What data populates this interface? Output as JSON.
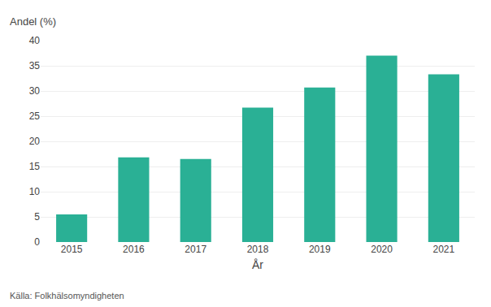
{
  "chart_data": {
    "type": "bar",
    "categories": [
      "2015",
      "2016",
      "2017",
      "2018",
      "2019",
      "2020",
      "2021"
    ],
    "values": [
      5.5,
      16.8,
      16.5,
      26.7,
      30.7,
      37.0,
      33.3
    ],
    "color": "#2ab095",
    "xlabel": "År",
    "ylabel": "Andel (%)",
    "ylim": [
      0,
      40
    ],
    "yticks": [
      0,
      5,
      10,
      15,
      20,
      25,
      30,
      35,
      40
    ],
    "grid": true,
    "annotations": [
      "Källa: Folkhälsomyndigheten"
    ]
  }
}
